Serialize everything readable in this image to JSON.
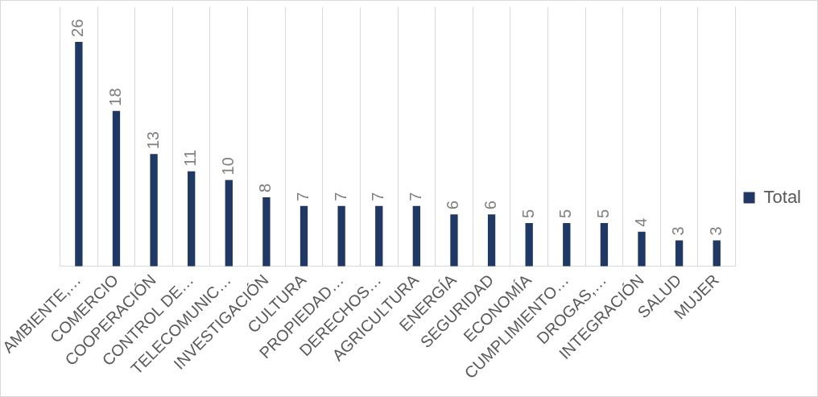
{
  "chart_data": {
    "type": "bar",
    "categories": [
      "AMBIENTE,…",
      "COMERCIO",
      "COOPERACIÓN",
      "CONTROL DE…",
      "TELECOMUNIC…",
      "INVESTIGACIÓN",
      "CULTURA",
      "PROPIEDAD…",
      "DERECHOS…",
      "AGRICULTURA",
      "ENERGÍA",
      "SEGURIDAD",
      "ECONOMÍA",
      "CUMPLIMIENTO…",
      "DROGAS,…",
      "INTEGRACIÓN",
      "SALUD",
      "MUJER"
    ],
    "series": [
      {
        "name": "Total",
        "color": "#203864",
        "values": [
          26,
          18,
          13,
          11,
          10,
          8,
          7,
          7,
          7,
          7,
          6,
          6,
          5,
          5,
          5,
          4,
          3,
          3
        ]
      }
    ],
    "ylim": [
      0,
      30
    ],
    "tick_labels": "x",
    "grid": "x",
    "legend": "right",
    "data_labels": true
  }
}
